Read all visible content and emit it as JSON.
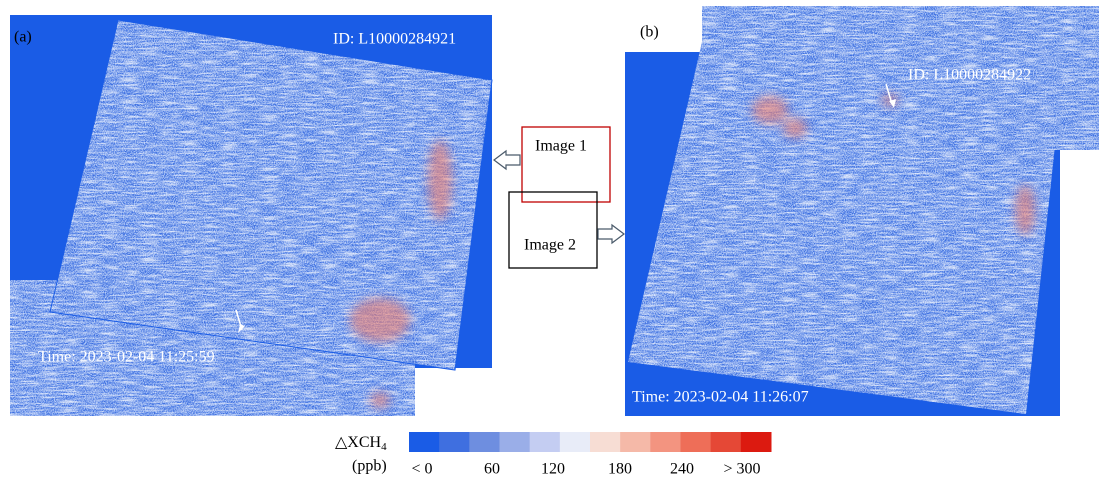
{
  "panels": [
    {
      "label": "(a)",
      "id": "ID: L10000284921",
      "time": "Time: 2023-02-04 11:25:59"
    },
    {
      "label": "(b)",
      "id": "ID: L10000284922",
      "time": "Time: 2023-02-04 11:26:07"
    }
  ],
  "diagram": {
    "image1": "Image 1",
    "image2": "Image 2"
  },
  "colorbar": {
    "title": "△XCH",
    "subscript": "4",
    "unit": "(ppb)",
    "labels": [
      "< 0",
      "60",
      "120",
      "180",
      "240",
      "> 300"
    ],
    "colors": [
      "#1a5ce6",
      "#3f6fe0",
      "#6e8ee0",
      "#9aaee8",
      "#c4cdf2",
      "#e8ecf8",
      "#f7ddd4",
      "#f5b9a8",
      "#f39480",
      "#ee6e58",
      "#e54836",
      "#dc1a10"
    ]
  }
}
